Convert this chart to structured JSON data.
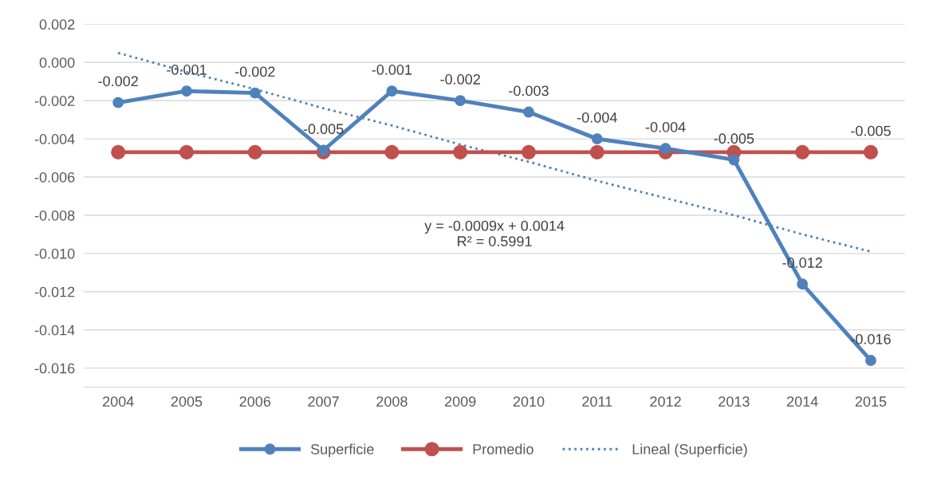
{
  "chart_data": {
    "type": "line",
    "categories": [
      "2004",
      "2005",
      "2006",
      "2007",
      "2008",
      "2009",
      "2010",
      "2011",
      "2012",
      "2013",
      "2014",
      "2015"
    ],
    "series": [
      {
        "name": "Superficie",
        "color": "#4f81bd",
        "marker": "circle",
        "values": [
          -0.0021,
          -0.0015,
          -0.0016,
          -0.0046,
          -0.0015,
          -0.002,
          -0.0026,
          -0.004,
          -0.0045,
          -0.0051,
          -0.0116,
          -0.0156
        ],
        "value_labels": [
          "-0.002",
          "-0.001",
          "-0.002",
          "-0.005",
          "-0.001",
          "-0.002",
          "-0.003",
          "-0.004",
          "-0.004",
          "-0.005",
          "-0.012",
          "-0.016"
        ]
      },
      {
        "name": "Promedio",
        "color": "#c0504d",
        "marker": "circle",
        "values": [
          -0.0047,
          -0.0047,
          -0.0047,
          -0.0047,
          -0.0047,
          -0.0047,
          -0.0047,
          -0.0047,
          -0.0047,
          -0.0047,
          -0.0047,
          -0.0047
        ],
        "value_labels": [
          null,
          null,
          null,
          null,
          null,
          null,
          null,
          null,
          null,
          null,
          null,
          "-0.005"
        ]
      },
      {
        "name": "Lineal (Superficie)",
        "color": "#4f81bd",
        "line_style": "dotted",
        "marker": "none",
        "values": [
          0.0005,
          -0.0005,
          -0.0014,
          -0.0024,
          -0.0033,
          -0.0043,
          -0.0052,
          -0.0062,
          -0.0071,
          -0.008,
          -0.009,
          -0.0099
        ]
      }
    ],
    "annotations": [
      "y = -0.0009x + 0.0014\nR² = 0.5991"
    ],
    "ylim": [
      -0.017,
      0.002
    ],
    "yticks": [
      {
        "value": 0.002,
        "label": "0.002"
      },
      {
        "value": 0.0,
        "label": "0.000"
      },
      {
        "value": -0.002,
        "label": "-0.002"
      },
      {
        "value": -0.004,
        "label": "-0.004"
      },
      {
        "value": -0.006,
        "label": "-0.006"
      },
      {
        "value": -0.008,
        "label": "-0.008"
      },
      {
        "value": -0.01,
        "label": "-0.010"
      },
      {
        "value": -0.012,
        "label": "-0.012"
      },
      {
        "value": -0.014,
        "label": "-0.014"
      },
      {
        "value": -0.016,
        "label": "-0.016"
      }
    ],
    "grid": "y",
    "legend": "bottom"
  }
}
